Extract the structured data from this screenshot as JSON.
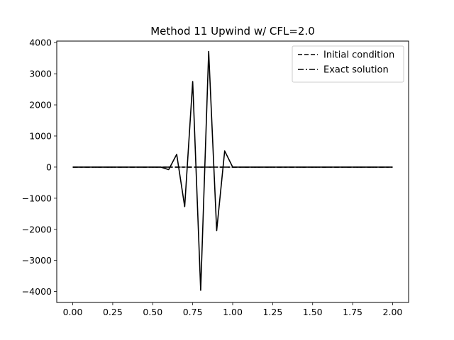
{
  "chart_data": {
    "type": "line",
    "title": "Method 11 Upwind w/ CFL=2.0",
    "xlabel": "",
    "ylabel": "",
    "xlim": [
      -0.1,
      2.1
    ],
    "ylim": [
      -4350,
      4050
    ],
    "xticks": [
      0.0,
      0.25,
      0.5,
      0.75,
      1.0,
      1.25,
      1.5,
      1.75,
      2.0
    ],
    "xtick_labels": [
      "0.00",
      "0.25",
      "0.50",
      "0.75",
      "1.00",
      "1.25",
      "1.50",
      "1.75",
      "2.00"
    ],
    "yticks": [
      -4000,
      -3000,
      -2000,
      -1000,
      0,
      1000,
      2000,
      3000,
      4000
    ],
    "ytick_labels": [
      "−4000",
      "−3000",
      "−2000",
      "−1000",
      "0",
      "1000",
      "2000",
      "3000",
      "4000"
    ],
    "grid": false,
    "legend_position": "top-right",
    "color": "#000000",
    "series": [
      {
        "name": "Initial condition",
        "style": "dashed",
        "in_legend": true,
        "x": [
          0.0,
          0.05,
          0.1,
          0.15,
          0.2,
          0.25,
          0.3,
          0.35,
          0.4,
          0.45,
          0.5,
          0.55,
          0.6,
          0.65,
          0.7,
          0.75,
          0.8,
          0.85,
          0.9,
          0.95,
          1.0,
          1.05,
          1.1,
          1.15,
          1.2,
          1.25,
          1.3,
          1.35,
          1.4,
          1.45,
          1.5,
          1.55,
          1.6,
          1.65,
          1.7,
          1.75,
          1.8,
          1.85,
          1.9,
          1.95,
          2.0
        ],
        "y": [
          0,
          0,
          0,
          0,
          0,
          0,
          0,
          0,
          0,
          0,
          0,
          0,
          0,
          0,
          0,
          0,
          0,
          0,
          0,
          0,
          0,
          0,
          0,
          0,
          0,
          0,
          0,
          0,
          0,
          0,
          0,
          0,
          0,
          0,
          0,
          0,
          0,
          0,
          0,
          0,
          0
        ]
      },
      {
        "name": "Exact solution",
        "style": "dashdot",
        "in_legend": true,
        "x": [
          0.0,
          0.05,
          0.1,
          0.15,
          0.2,
          0.25,
          0.3,
          0.35,
          0.4,
          0.45,
          0.5,
          0.55,
          0.6,
          0.65,
          0.7,
          0.75,
          0.8,
          0.85,
          0.9,
          0.95,
          1.0,
          1.05,
          1.1,
          1.15,
          1.2,
          1.25,
          1.3,
          1.35,
          1.4,
          1.45,
          1.5,
          1.55,
          1.6,
          1.65,
          1.7,
          1.75,
          1.8,
          1.85,
          1.9,
          1.95,
          2.0
        ],
        "y": [
          0,
          0,
          0,
          0,
          0,
          0,
          0,
          0,
          0,
          0,
          0,
          0,
          0,
          0,
          0,
          0,
          0,
          0,
          0,
          0,
          0,
          0,
          0,
          0,
          0,
          0,
          0,
          0,
          0,
          0,
          0,
          0,
          0,
          0,
          0,
          0,
          0,
          0,
          0,
          0,
          0
        ]
      },
      {
        "name": "",
        "style": "solid",
        "in_legend": false,
        "x": [
          0.0,
          0.05,
          0.1,
          0.15,
          0.2,
          0.25,
          0.3,
          0.35,
          0.4,
          0.45,
          0.5,
          0.55,
          0.6,
          0.65,
          0.7,
          0.75,
          0.8,
          0.85,
          0.9,
          0.95,
          1.0,
          1.05,
          1.1,
          1.15,
          1.2,
          1.25,
          1.3,
          1.35,
          1.4,
          1.45,
          1.5,
          1.55,
          1.6,
          1.65,
          1.7,
          1.75,
          1.8,
          1.85,
          1.9,
          1.95,
          2.0
        ],
        "y": [
          0,
          0,
          0,
          0,
          0,
          0,
          0,
          0,
          0,
          0,
          0,
          0,
          -80,
          410,
          -1270,
          2750,
          -3960,
          3720,
          -2040,
          520,
          0,
          0,
          0,
          0,
          0,
          0,
          0,
          0,
          0,
          0,
          0,
          0,
          0,
          0,
          0,
          0,
          0,
          0,
          0,
          0,
          0
        ]
      }
    ]
  }
}
